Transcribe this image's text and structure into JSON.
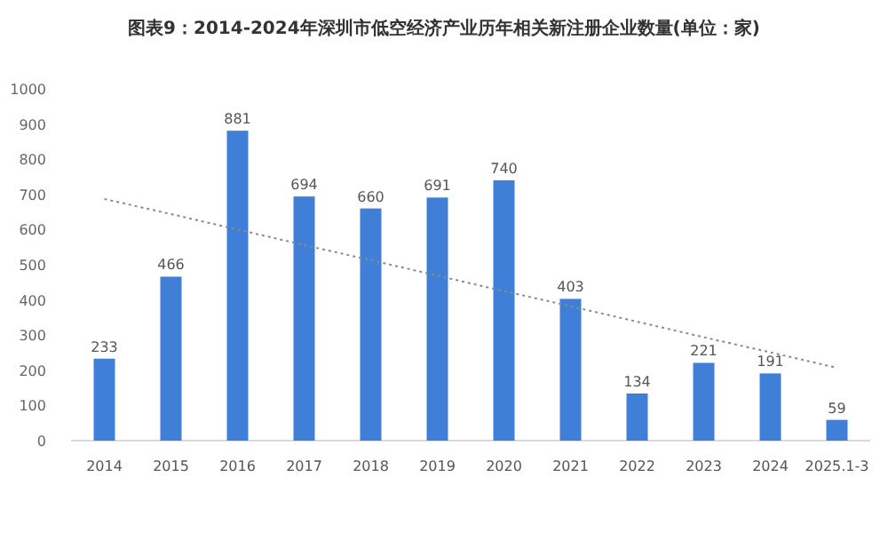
{
  "chart_data": {
    "type": "bar",
    "title": "图表9：2014-2024年深圳市低空经济产业历年相关新注册企业数量(单位：家)",
    "categories": [
      "2014",
      "2015",
      "2016",
      "2017",
      "2018",
      "2019",
      "2020",
      "2021",
      "2022",
      "2023",
      "2024",
      "2025.1-3"
    ],
    "series": [
      {
        "color": "#3f7fd8",
        "values": [
          233,
          466,
          881,
          694,
          660,
          691,
          740,
          403,
          134,
          221,
          191,
          59
        ],
        "value_labels": [
          "233",
          "466",
          "881",
          "694",
          "660",
          "691",
          "740",
          "403",
          "134",
          "221",
          "191",
          "59"
        ]
      },
      {
        "type": "line",
        "values": [
          687,
          644,
          600,
          556,
          513,
          469,
          425,
          382,
          338,
          294,
          251,
          207
        ],
        "color": "#8a8a8a",
        "line_style": "dotted"
      }
    ],
    "ylim": [
      0,
      1000
    ],
    "yticks": [
      0,
      100,
      200,
      300,
      400,
      500,
      600,
      700,
      800,
      900,
      1000
    ],
    "grid": false
  }
}
